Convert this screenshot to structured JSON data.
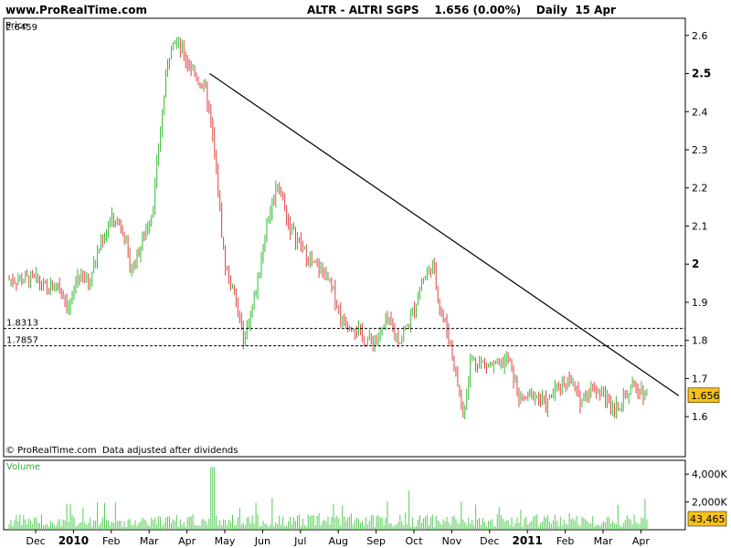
{
  "header": {
    "site": "www.ProRealTime.com",
    "title": "ALTR - ALTRI SGPS    1.656 (0.00%)    Daily  15 Apr"
  },
  "price_panel": {
    "label": "Price",
    "top_value": "2.6459",
    "footer": "© ProRealTime.com  Data adjusted after dividends"
  },
  "volume_panel": {
    "label": "Volume"
  },
  "colors": {
    "up": "#33bb33",
    "down": "#dd4444",
    "last_price_badge": "#f7c11b",
    "volume_bar": "#55cc55"
  },
  "chart_data": [
    {
      "type": "candlestick",
      "title": "ALTR - ALTRI SGPS",
      "ylabel": "Price",
      "ylim": [
        1.495,
        2.645
      ],
      "yticks": [
        1.6,
        1.7,
        1.8,
        1.9,
        2.0,
        2.1,
        2.2,
        2.3,
        2.4,
        2.5,
        2.6
      ],
      "ytick_labels": [
        "1.6",
        "1.7",
        "1.8",
        "1.9",
        "2",
        "2.1",
        "2.2",
        "2.3",
        "2.4",
        "2.5",
        "2.6"
      ],
      "x_months": [
        "Dec",
        "2010",
        "Feb",
        "Mar",
        "Apr",
        "May",
        "Jun",
        "Jul",
        "Aug",
        "Sep",
        "Oct",
        "Nov",
        "Dec",
        "2011",
        "Feb",
        "Mar",
        "Apr"
      ],
      "last_price": 1.656,
      "horizontal_levels": [
        {
          "label": "1.8313",
          "value": 1.8313
        },
        {
          "label": "1.7857",
          "value": 1.7857
        }
      ],
      "trendline": {
        "from": {
          "month_index": 4.6,
          "value": 2.5
        },
        "to": {
          "month_index": 17.0,
          "value": 1.655
        }
      },
      "anchors": [
        {
          "m": 0.0,
          "v": 1.96
        },
        {
          "m": 0.3,
          "v": 1.93
        },
        {
          "m": 0.6,
          "v": 1.95
        },
        {
          "m": 0.9,
          "v": 1.88
        },
        {
          "m": 1.1,
          "v": 1.97
        },
        {
          "m": 1.4,
          "v": 1.95
        },
        {
          "m": 1.7,
          "v": 2.05
        },
        {
          "m": 2.0,
          "v": 2.12
        },
        {
          "m": 2.3,
          "v": 2.1
        },
        {
          "m": 2.5,
          "v": 1.98
        },
        {
          "m": 2.8,
          "v": 2.05
        },
        {
          "m": 3.1,
          "v": 2.15
        },
        {
          "m": 3.4,
          "v": 2.45
        },
        {
          "m": 3.6,
          "v": 2.6
        },
        {
          "m": 3.9,
          "v": 2.55
        },
        {
          "m": 4.2,
          "v": 2.5
        },
        {
          "m": 4.5,
          "v": 2.45
        },
        {
          "m": 4.7,
          "v": 2.32
        },
        {
          "m": 5.0,
          "v": 2.0
        },
        {
          "m": 5.3,
          "v": 1.9
        },
        {
          "m": 5.5,
          "v": 1.8
        },
        {
          "m": 5.8,
          "v": 1.92
        },
        {
          "m": 6.1,
          "v": 2.1
        },
        {
          "m": 6.4,
          "v": 2.22
        },
        {
          "m": 6.7,
          "v": 2.1
        },
        {
          "m": 7.0,
          "v": 2.05
        },
        {
          "m": 7.3,
          "v": 2.0
        },
        {
          "m": 7.6,
          "v": 1.98
        },
        {
          "m": 7.9,
          "v": 1.92
        },
        {
          "m": 8.1,
          "v": 1.85
        },
        {
          "m": 8.4,
          "v": 1.84
        },
        {
          "m": 8.7,
          "v": 1.8
        },
        {
          "m": 9.0,
          "v": 1.8
        },
        {
          "m": 9.3,
          "v": 1.85
        },
        {
          "m": 9.6,
          "v": 1.8
        },
        {
          "m": 9.9,
          "v": 1.85
        },
        {
          "m": 10.2,
          "v": 1.95
        },
        {
          "m": 10.5,
          "v": 2.0
        },
        {
          "m": 10.7,
          "v": 1.88
        },
        {
          "m": 10.9,
          "v": 1.82
        },
        {
          "m": 11.1,
          "v": 1.72
        },
        {
          "m": 11.3,
          "v": 1.6
        },
        {
          "m": 11.5,
          "v": 1.75
        },
        {
          "m": 11.8,
          "v": 1.74
        },
        {
          "m": 12.2,
          "v": 1.73
        },
        {
          "m": 12.5,
          "v": 1.75
        },
        {
          "m": 12.8,
          "v": 1.64
        },
        {
          "m": 13.2,
          "v": 1.66
        },
        {
          "m": 13.5,
          "v": 1.63
        },
        {
          "m": 13.8,
          "v": 1.68
        },
        {
          "m": 14.1,
          "v": 1.7
        },
        {
          "m": 14.4,
          "v": 1.64
        },
        {
          "m": 14.7,
          "v": 1.68
        },
        {
          "m": 15.0,
          "v": 1.66
        },
        {
          "m": 15.3,
          "v": 1.62
        },
        {
          "m": 15.6,
          "v": 1.66
        },
        {
          "m": 15.9,
          "v": 1.68
        },
        {
          "m": 16.2,
          "v": 1.656
        }
      ]
    },
    {
      "type": "bar",
      "title": "Volume",
      "ylim": [
        0,
        5000000
      ],
      "yticks": [
        2000000,
        4000000
      ],
      "ytick_labels": [
        "2,000K",
        "4,000K"
      ],
      "last_value_label": "43,465",
      "notes": "daily volume bars, mostly below 2,000K with occasional spikes up to ~4,500K around April 2010"
    }
  ]
}
